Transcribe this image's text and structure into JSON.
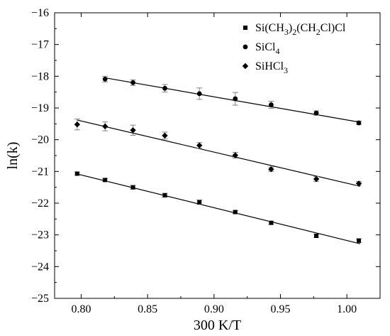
{
  "chart_data": {
    "type": "scatter",
    "xlabel": "300 K/T",
    "ylabel": "ln(k)",
    "xlim": [
      0.78,
      1.025
    ],
    "ylim": [
      -25,
      -16
    ],
    "xticks": [
      "0.80",
      "0.85",
      "0.90",
      "0.95",
      "1.00"
    ],
    "xtick_values": [
      0.8,
      0.85,
      0.9,
      0.95,
      1.0
    ],
    "yticks": [
      "−16",
      "−17",
      "−18",
      "−19",
      "−20",
      "−21",
      "−22",
      "−23",
      "−24",
      "−25"
    ],
    "ytick_values": [
      -16,
      -17,
      -18,
      -19,
      -20,
      -21,
      -22,
      -23,
      -24,
      -25
    ],
    "grid": false,
    "legend_position": "top-right",
    "series": [
      {
        "name": "Si(CH3)2(CH2Cl)Cl",
        "legend": {
          "base": "Si(CH",
          "sub1": "3",
          "mid1": ")",
          "sub2": "2",
          "mid2": "(CH",
          "sub3": "2",
          "tail": "Cl)Cl"
        },
        "marker": "square",
        "x": [
          0.797,
          0.818,
          0.839,
          0.863,
          0.889,
          0.916,
          0.943,
          0.977,
          1.009
        ],
        "y": [
          -21.07,
          -21.27,
          -21.5,
          -21.75,
          -21.97,
          -22.28,
          -22.62,
          -23.03,
          -23.18
        ],
        "err": [
          0.05,
          0.05,
          0.06,
          0.06,
          0.07,
          0.05,
          0.05,
          0.05,
          0.06
        ],
        "fit": {
          "x": [
            0.797,
            1.01
          ],
          "y": [
            -21.08,
            -23.28
          ]
        }
      },
      {
        "name": "SiCl4",
        "legend": {
          "base": "SiCl",
          "sub1": "4"
        },
        "marker": "circle",
        "x": [
          0.818,
          0.839,
          0.863,
          0.889,
          0.916,
          0.943,
          0.977,
          1.009
        ],
        "y": [
          -18.09,
          -18.2,
          -18.38,
          -18.55,
          -18.71,
          -18.9,
          -19.16,
          -19.47
        ],
        "err": [
          0.09,
          0.09,
          0.12,
          0.18,
          0.2,
          0.11,
          0.07,
          0.06
        ],
        "fit": {
          "x": [
            0.818,
            1.01
          ],
          "y": [
            -18.05,
            -19.45
          ]
        }
      },
      {
        "name": "SiHCl3",
        "legend": {
          "base": "SiHCl",
          "sub1": "3"
        },
        "marker": "diamond",
        "x": [
          0.797,
          0.818,
          0.839,
          0.863,
          0.889,
          0.916,
          0.943,
          0.977,
          1.009
        ],
        "y": [
          -19.52,
          -19.58,
          -19.7,
          -19.87,
          -20.18,
          -20.49,
          -20.93,
          -21.24,
          -21.38
        ],
        "err": [
          0.17,
          0.14,
          0.16,
          0.11,
          0.09,
          0.09,
          0.07,
          0.08,
          0.06
        ],
        "fit": {
          "x": [
            0.797,
            1.01
          ],
          "y": [
            -19.38,
            -21.47
          ]
        }
      }
    ]
  }
}
